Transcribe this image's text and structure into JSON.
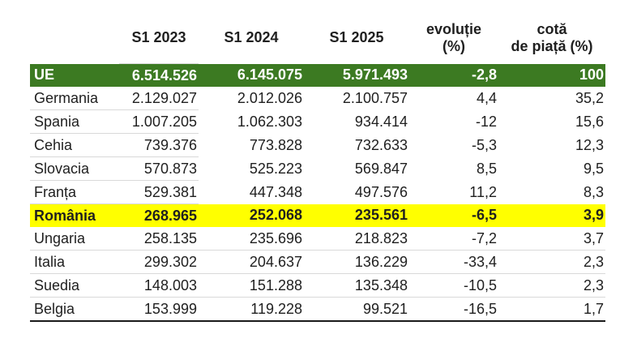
{
  "colors": {
    "total_row_bg": "#3C7A22",
    "total_row_text": "#FFFFFF",
    "highlight_row_bg": "#FFFF00",
    "row_border": "#D9D9D9",
    "bottom_border": "#1A1A1A",
    "text": "#1F1F1F"
  },
  "table": {
    "columns": [
      {
        "id": "country",
        "label": ""
      },
      {
        "id": "s1_2023",
        "label": "S1 2023"
      },
      {
        "id": "s1_2024",
        "label": "S1 2024"
      },
      {
        "id": "s1_2025",
        "label": "S1 2025"
      },
      {
        "id": "evolutie",
        "label": "evoluție",
        "sublabel": "(%)"
      },
      {
        "id": "cota",
        "label": "cotă",
        "sublabel": "de piață (%)"
      }
    ],
    "rows": [
      {
        "country": "UE",
        "s1_2023": "6.514.526",
        "s1_2024": "6.145.075",
        "s1_2025": "5.971.493",
        "evolutie": "-2,8",
        "cota": "100"
      },
      {
        "country": "Germania",
        "s1_2023": "2.129.027",
        "s1_2024": "2.012.026",
        "s1_2025": "2.100.757",
        "evolutie": "4,4",
        "cota": "35,2"
      },
      {
        "country": "Spania",
        "s1_2023": "1.007.205",
        "s1_2024": "1.062.303",
        "s1_2025": "934.414",
        "evolutie": "-12",
        "cota": "15,6"
      },
      {
        "country": "Cehia",
        "s1_2023": "739.376",
        "s1_2024": "773.828",
        "s1_2025": "732.633",
        "evolutie": "-5,3",
        "cota": "12,3"
      },
      {
        "country": "Slovacia",
        "s1_2023": "570.873",
        "s1_2024": "525.223",
        "s1_2025": "569.847",
        "evolutie": "8,5",
        "cota": "9,5"
      },
      {
        "country": "Franța",
        "s1_2023": "529.381",
        "s1_2024": "447.348",
        "s1_2025": "497.576",
        "evolutie": "11,2",
        "cota": "8,3"
      },
      {
        "country": "România",
        "s1_2023": "268.965",
        "s1_2024": "252.068",
        "s1_2025": "235.561",
        "evolutie": "-6,5",
        "cota": "3,9"
      },
      {
        "country": "Ungaria",
        "s1_2023": "258.135",
        "s1_2024": "235.696",
        "s1_2025": "218.823",
        "evolutie": "-7,2",
        "cota": "3,7"
      },
      {
        "country": "Italia",
        "s1_2023": "299.302",
        "s1_2024": "204.637",
        "s1_2025": "136.229",
        "evolutie": "-33,4",
        "cota": "2,3"
      },
      {
        "country": "Suedia",
        "s1_2023": "148.003",
        "s1_2024": "151.288",
        "s1_2025": "135.348",
        "evolutie": "-10,5",
        "cota": "2,3"
      },
      {
        "country": "Belgia",
        "s1_2023": "153.999",
        "s1_2024": "119.228",
        "s1_2025": "99.521",
        "evolutie": "-16,5",
        "cota": "1,7"
      }
    ]
  },
  "chart_data": {
    "type": "table",
    "title": "",
    "columns": [
      "",
      "S1 2023",
      "S1 2024",
      "S1 2025",
      "evoluție (%)",
      "cotă de piață (%)"
    ],
    "categories": [
      "UE",
      "Germania",
      "Spania",
      "Cehia",
      "Slovacia",
      "Franța",
      "România",
      "Ungaria",
      "Italia",
      "Suedia",
      "Belgia"
    ],
    "series": [
      {
        "name": "S1 2023",
        "values": [
          6514526,
          2129027,
          1007205,
          739376,
          570873,
          529381,
          268965,
          258135,
          299302,
          148003,
          153999
        ]
      },
      {
        "name": "S1 2024",
        "values": [
          6145075,
          2012026,
          1062303,
          773828,
          525223,
          447348,
          252068,
          235696,
          204637,
          151288,
          119228
        ]
      },
      {
        "name": "S1 2025",
        "values": [
          5971493,
          2100757,
          934414,
          732633,
          569847,
          497576,
          235561,
          218823,
          136229,
          135348,
          99521
        ]
      },
      {
        "name": "evoluție (%)",
        "values": [
          -2.8,
          4.4,
          -12,
          -5.3,
          8.5,
          11.2,
          -6.5,
          -7.2,
          -33.4,
          -10.5,
          -16.5
        ]
      },
      {
        "name": "cotă de piață (%)",
        "values": [
          100,
          35.2,
          15.6,
          12.3,
          9.5,
          8.3,
          3.9,
          3.7,
          2.3,
          2.3,
          1.7
        ]
      }
    ],
    "highlighted_row": "România",
    "total_row": "UE",
    "legend_position": "none",
    "grid": "partial-row-separators"
  }
}
